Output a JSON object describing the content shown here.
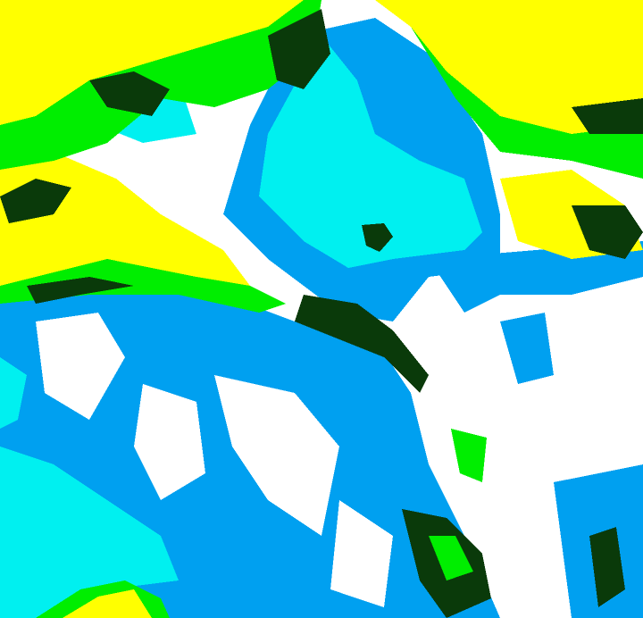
{
  "map": {
    "type": "classified-raster",
    "colors": {
      "yellow": "#ffff00",
      "green": "#00ee00",
      "dark_green": "#0a3a0a",
      "cyan": "#00f0f0",
      "blue": "#00a0f0",
      "white": "#ffffff"
    }
  }
}
